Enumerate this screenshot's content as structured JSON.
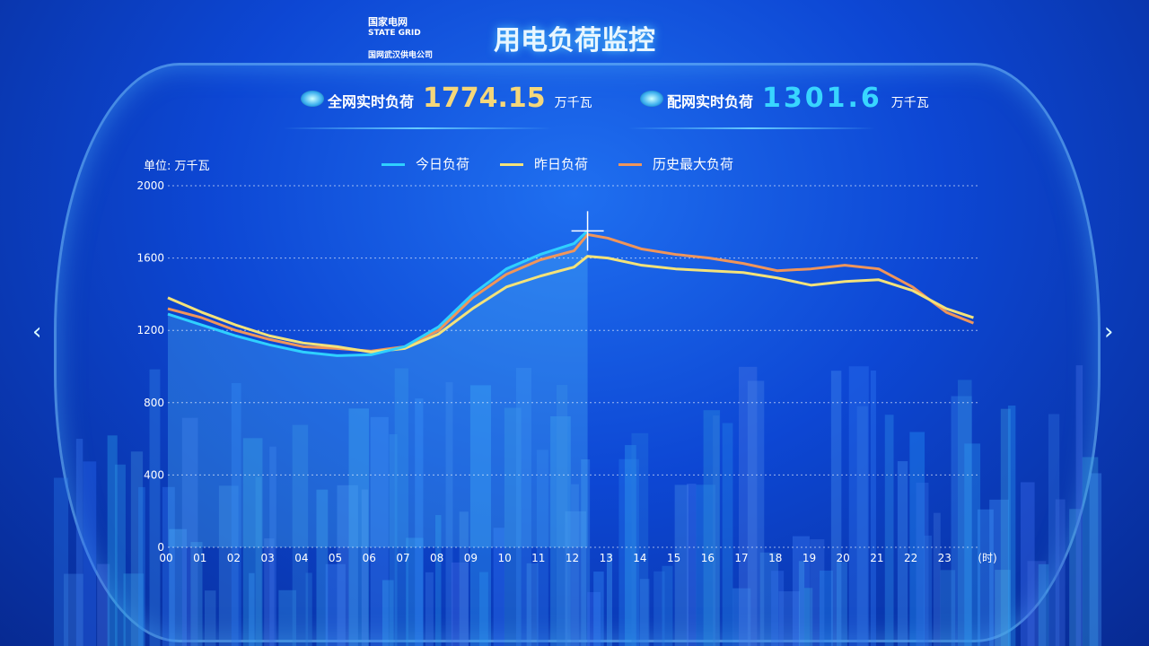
{
  "header": {
    "logo_cn": "国家电网",
    "logo_en": "STATE GRID",
    "company": "国网武汉供电公司",
    "title": "用电负荷监控"
  },
  "kpis": [
    {
      "label": "全网实时负荷",
      "value": "1774.15",
      "unit": "万千瓦",
      "color": "#f5d77a"
    },
    {
      "label": "配网实时负荷",
      "value": "1301.6",
      "unit": "万千瓦",
      "color": "#38d6ff"
    }
  ],
  "chart_data": {
    "type": "line",
    "unit_label": "单位: 万千瓦",
    "xlabel": "(时)",
    "x_ticks": [
      "00",
      "01",
      "02",
      "03",
      "04",
      "05",
      "06",
      "07",
      "08",
      "09",
      "10",
      "11",
      "12",
      "13",
      "14",
      "15",
      "16",
      "17",
      "18",
      "19",
      "20",
      "21",
      "22",
      "23"
    ],
    "y_ticks": [
      0,
      400,
      800,
      1200,
      1600,
      2000
    ],
    "ylim": [
      0,
      2000
    ],
    "xlim": [
      0,
      24
    ],
    "grid": true,
    "legend": "top-center",
    "series": [
      {
        "name": "今日负荷",
        "color": "#2fd0ff",
        "x": [
          0,
          1,
          2,
          3,
          4,
          5,
          6,
          7,
          8,
          9,
          10,
          11,
          12,
          12.4
        ],
        "y": [
          1290,
          1230,
          1170,
          1120,
          1080,
          1060,
          1065,
          1110,
          1220,
          1400,
          1540,
          1620,
          1680,
          1750
        ]
      },
      {
        "name": "昨日负荷",
        "color": "#f3e27a",
        "x": [
          0,
          1,
          2,
          3,
          4,
          5,
          6,
          7,
          8,
          9,
          10,
          11,
          12,
          12.4,
          13,
          14,
          15,
          16,
          17,
          18,
          19,
          20,
          21,
          22,
          23,
          23.8
        ],
        "y": [
          1380,
          1300,
          1230,
          1170,
          1130,
          1110,
          1080,
          1100,
          1180,
          1320,
          1440,
          1500,
          1550,
          1610,
          1600,
          1560,
          1540,
          1530,
          1520,
          1490,
          1450,
          1470,
          1480,
          1420,
          1320,
          1270
        ]
      },
      {
        "name": "历史最大负荷",
        "color": "#f0955a",
        "x": [
          0,
          1,
          2,
          3,
          4,
          5,
          6,
          7,
          8,
          9,
          10,
          11,
          12,
          12.4,
          13,
          14,
          15,
          16,
          17,
          18,
          19,
          20,
          21,
          22,
          23,
          23.8
        ],
        "y": [
          1320,
          1270,
          1200,
          1150,
          1110,
          1100,
          1085,
          1110,
          1200,
          1380,
          1510,
          1590,
          1640,
          1730,
          1710,
          1650,
          1620,
          1600,
          1570,
          1530,
          1540,
          1560,
          1540,
          1440,
          1300,
          1240
        ]
      }
    ]
  }
}
